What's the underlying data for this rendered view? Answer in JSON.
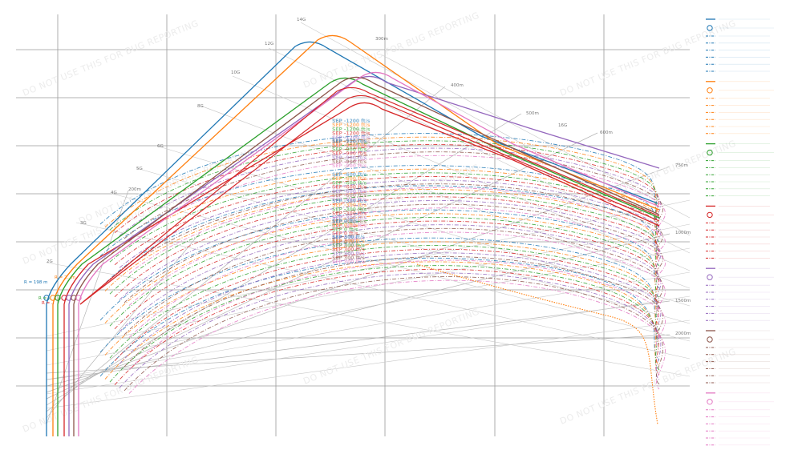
{
  "chart_data": {
    "type": "line",
    "title": "",
    "xlabel": "",
    "ylabel": "",
    "grid": true,
    "legend_placement": "right",
    "watermark_text": "DO NOT USE THIS FOR BUG REPORTING",
    "g_labels": [
      "2G",
      "3G",
      "4G",
      "5G",
      "6G",
      "8G",
      "10G",
      "12G",
      "14G",
      "16G"
    ],
    "radius_labels": [
      "200m",
      "300m",
      "400m",
      "500m",
      "600m",
      "750m",
      "1000m",
      "1500m",
      "2000m"
    ],
    "series_colors": [
      "#1f77b4",
      "#ff7f0e",
      "#2ca02c",
      "#d62728",
      "#9467bd",
      "#8c564b",
      "#e377c2"
    ],
    "sep_labels": [
      "SEP -1200 ft/s",
      "SEP -900 ft/s",
      "SEP -600 ft/s",
      "SEP -300 ft/s",
      "SEP 0 ft/s",
      "SEP 300 ft/s"
    ],
    "corner_labels": [
      "R = 198 m",
      "R = 2.. m",
      "R = ..",
      "R = .."
    ]
  }
}
